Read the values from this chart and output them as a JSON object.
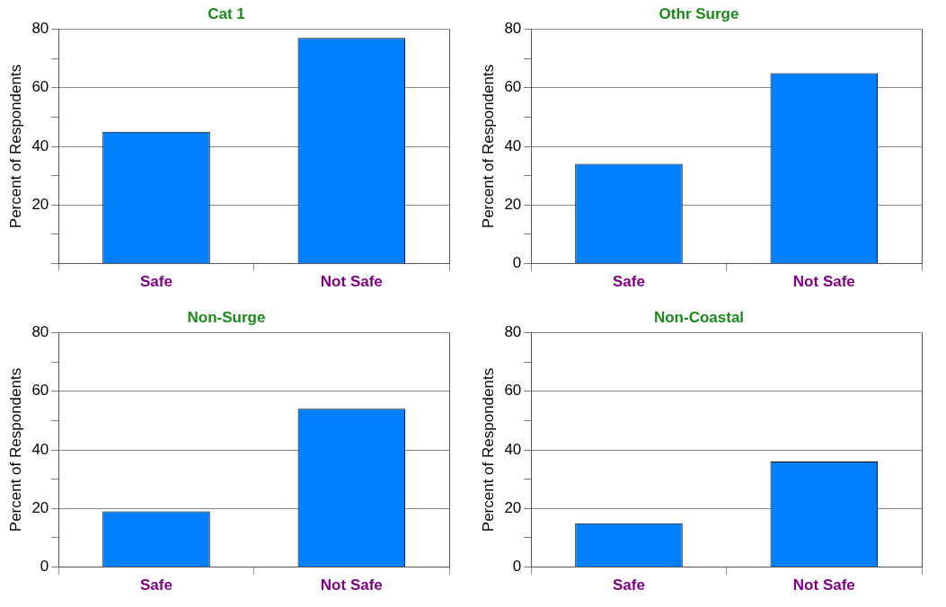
{
  "chart_data": [
    {
      "type": "bar",
      "title": "Cat 1",
      "categories": [
        "Safe",
        "Not Safe"
      ],
      "values": [
        45,
        77
      ],
      "color": "#0080ff",
      "ylabel": "Percent of Respondents",
      "ylim": [
        0,
        80
      ],
      "yticks": [
        {
          "value": 0,
          "label": null
        },
        {
          "value": 10,
          "label": null
        },
        20,
        {
          "value": 30,
          "label": null
        },
        40,
        {
          "value": 50,
          "label": null
        },
        60,
        {
          "value": 70,
          "label": null
        },
        80
      ],
      "grid": "y",
      "legend": false
    },
    {
      "type": "bar",
      "title": "Othr Surge",
      "categories": [
        "Safe",
        "Not Safe"
      ],
      "values": [
        34,
        65
      ],
      "color": "#0080ff",
      "ylabel": "Percent of Respondents",
      "ylim": [
        0,
        80
      ],
      "yticks": [
        0,
        {
          "value": 10,
          "label": null
        },
        20,
        {
          "value": 30,
          "label": null
        },
        40,
        {
          "value": 50,
          "label": null
        },
        60,
        {
          "value": 70,
          "label": null
        },
        80
      ],
      "grid": "y",
      "legend": false
    },
    {
      "type": "bar",
      "title": "Non-Surge",
      "categories": [
        "Safe",
        "Not Safe"
      ],
      "values": [
        19,
        54
      ],
      "color": "#0080ff",
      "ylabel": "Percent of Respondents",
      "ylim": [
        0,
        80
      ],
      "yticks": [
        0,
        {
          "value": 10,
          "label": null
        },
        20,
        {
          "value": 30,
          "label": null
        },
        40,
        {
          "value": 50,
          "label": null
        },
        60,
        {
          "value": 70,
          "label": null
        },
        80
      ],
      "grid": "y",
      "legend": false
    },
    {
      "type": "bar",
      "title": "Non-Coastal",
      "categories": [
        "Safe",
        "Not Safe"
      ],
      "values": [
        15,
        36
      ],
      "color": "#0080ff",
      "ylabel": "Percent of Respondents",
      "ylim": [
        0,
        80
      ],
      "yticks": [
        0,
        {
          "value": 10,
          "label": null
        },
        20,
        {
          "value": 30,
          "label": null
        },
        40,
        {
          "value": 50,
          "label": null
        },
        60,
        {
          "value": 70,
          "label": null
        },
        80
      ],
      "grid": "y",
      "legend": false
    }
  ]
}
